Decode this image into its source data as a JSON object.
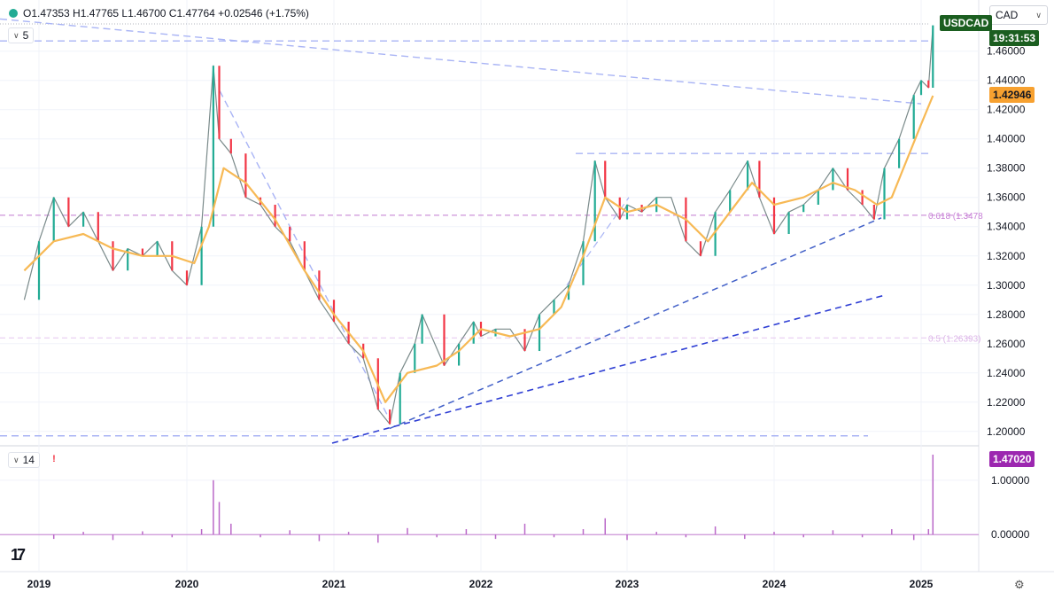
{
  "header": {
    "ohlc_text": "O1.47353 H1.47765 L1.46700 C1.47764 +0.02546 (+1.75%)",
    "symbol_badge": "USDCAD",
    "countdown": "19:31:53",
    "ma_value": "1.42946",
    "currency_select": "CAD",
    "price_indicator_length": "5",
    "sub_indicator_length": "14",
    "sub_value": "1.47020"
  },
  "colors": {
    "up": "#22ab94",
    "down": "#f23645",
    "ma": "#f7b955",
    "fib": "#ce93d8",
    "trend_light": "#a9b4f5",
    "trend_dark": "#4260c8",
    "sub": "#ba68c8"
  },
  "chart_data": [
    {
      "type": "line",
      "title": "USDCAD",
      "ylim": [
        1.192,
        1.478
      ],
      "x_ticks": [
        "2019",
        "2020",
        "2021",
        "2022",
        "2023",
        "2024",
        "2025"
      ],
      "y_ticks": [
        "1.46000",
        "1.44000",
        "1.42000",
        "1.40000",
        "1.38000",
        "1.36000",
        "1.34000",
        "1.32000",
        "1.30000",
        "1.28000",
        "1.26000",
        "1.24000",
        "1.22000",
        "1.20000"
      ],
      "series": [
        {
          "name": "USDCAD",
          "x": [
            2018.9,
            2019.0,
            2019.1,
            2019.2,
            2019.3,
            2019.4,
            2019.5,
            2019.6,
            2019.7,
            2019.8,
            2019.9,
            2020.0,
            2020.1,
            2020.18,
            2020.22,
            2020.3,
            2020.4,
            2020.5,
            2020.6,
            2020.7,
            2020.8,
            2020.9,
            2021.0,
            2021.1,
            2021.2,
            2021.3,
            2021.38,
            2021.45,
            2021.55,
            2021.6,
            2021.75,
            2021.85,
            2021.95,
            2022.0,
            2022.1,
            2022.2,
            2022.3,
            2022.4,
            2022.5,
            2022.6,
            2022.7,
            2022.78,
            2022.85,
            2022.95,
            2023.0,
            2023.1,
            2023.2,
            2023.3,
            2023.4,
            2023.5,
            2023.6,
            2023.7,
            2023.82,
            2023.9,
            2024.0,
            2024.1,
            2024.2,
            2024.3,
            2024.4,
            2024.5,
            2024.6,
            2024.68,
            2024.75,
            2024.85,
            2024.95,
            2025.0,
            2025.05,
            2025.08
          ],
          "values": [
            1.29,
            1.33,
            1.36,
            1.34,
            1.35,
            1.33,
            1.31,
            1.325,
            1.32,
            1.33,
            1.31,
            1.3,
            1.34,
            1.45,
            1.4,
            1.39,
            1.36,
            1.355,
            1.34,
            1.33,
            1.31,
            1.29,
            1.275,
            1.26,
            1.25,
            1.215,
            1.205,
            1.24,
            1.26,
            1.28,
            1.245,
            1.26,
            1.275,
            1.265,
            1.27,
            1.27,
            1.255,
            1.28,
            1.29,
            1.3,
            1.33,
            1.385,
            1.36,
            1.345,
            1.355,
            1.35,
            1.36,
            1.36,
            1.33,
            1.32,
            1.35,
            1.365,
            1.385,
            1.36,
            1.335,
            1.35,
            1.355,
            1.365,
            1.38,
            1.365,
            1.355,
            1.345,
            1.38,
            1.4,
            1.43,
            1.44,
            1.435,
            1.4776
          ]
        },
        {
          "name": "MA",
          "x": [
            2018.9,
            2019.1,
            2019.3,
            2019.5,
            2019.7,
            2019.9,
            2020.05,
            2020.15,
            2020.25,
            2020.4,
            2020.6,
            2020.8,
            2021.0,
            2021.2,
            2021.35,
            2021.5,
            2021.7,
            2021.85,
            2022.0,
            2022.2,
            2022.4,
            2022.55,
            2022.7,
            2022.85,
            2023.0,
            2023.2,
            2023.4,
            2023.55,
            2023.7,
            2023.85,
            2024.0,
            2024.2,
            2024.4,
            2024.55,
            2024.7,
            2024.8,
            2024.9,
            2025.0,
            2025.08
          ],
          "values": [
            1.31,
            1.33,
            1.335,
            1.325,
            1.32,
            1.32,
            1.315,
            1.34,
            1.38,
            1.37,
            1.345,
            1.31,
            1.28,
            1.255,
            1.22,
            1.24,
            1.245,
            1.255,
            1.27,
            1.265,
            1.27,
            1.285,
            1.32,
            1.36,
            1.35,
            1.355,
            1.345,
            1.33,
            1.35,
            1.37,
            1.355,
            1.36,
            1.37,
            1.365,
            1.355,
            1.36,
            1.385,
            1.41,
            1.4295
          ]
        }
      ],
      "annotations": [
        "0.618 (1.3478",
        "0.5 (1.26393)"
      ]
    },
    {
      "type": "line",
      "ylim": [
        -0.6,
        1.6
      ],
      "y_ticks": [
        "1.00000",
        "0.00000"
      ],
      "series": [
        {
          "name": "14",
          "x": [
            2018.95,
            2019.1,
            2019.3,
            2019.5,
            2019.7,
            2019.9,
            2020.1,
            2020.18,
            2020.22,
            2020.3,
            2020.5,
            2020.7,
            2020.9,
            2021.1,
            2021.3,
            2021.5,
            2021.7,
            2021.9,
            2022.1,
            2022.3,
            2022.5,
            2022.7,
            2022.85,
            2023.0,
            2023.2,
            2023.4,
            2023.6,
            2023.8,
            2024.0,
            2024.2,
            2024.4,
            2024.6,
            2024.8,
            2024.95,
            2025.05,
            2025.08
          ],
          "values": [
            0.0,
            -0.08,
            0.05,
            -0.1,
            0.06,
            -0.05,
            0.1,
            1.0,
            0.6,
            0.2,
            -0.05,
            0.08,
            -0.12,
            0.05,
            -0.15,
            0.12,
            -0.05,
            0.1,
            -0.08,
            0.2,
            -0.05,
            0.1,
            0.3,
            -0.1,
            0.05,
            -0.05,
            0.15,
            -0.08,
            0.05,
            -0.05,
            0.08,
            -0.05,
            0.1,
            -0.1,
            0.1,
            1.47
          ]
        }
      ]
    }
  ]
}
